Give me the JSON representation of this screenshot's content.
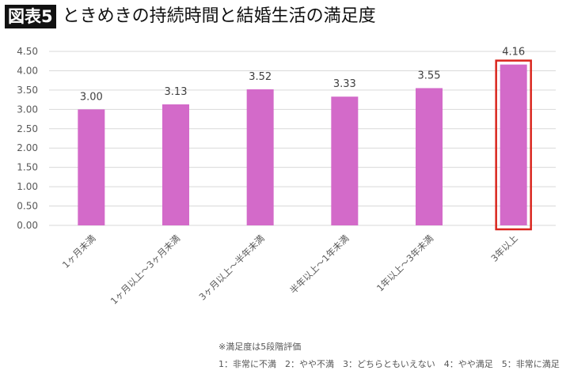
{
  "header": {
    "badge": "図表5",
    "title": "ときめきの持続時間と結婚生活の満足度"
  },
  "chart_data": {
    "type": "bar",
    "title": "ときめきの持続時間と結婚生活の満足度",
    "categories": [
      "1ヶ月未満",
      "1ヶ月以上～3ヶ月未満",
      "3ヶ月以上～半年未満",
      "半年以上～1年未満",
      "1年以上～3年未満",
      "3年以上"
    ],
    "values": [
      3.0,
      3.13,
      3.52,
      3.33,
      3.55,
      4.16
    ],
    "data_labels": [
      "3.00",
      "3.13",
      "3.52",
      "3.33",
      "3.55",
      "4.16"
    ],
    "yticks": [
      "0.00",
      "0.50",
      "1.00",
      "1.50",
      "2.00",
      "2.50",
      "3.00",
      "3.50",
      "4.00",
      "4.50"
    ],
    "ylim": [
      0,
      4.5
    ],
    "grid": true,
    "highlighted_category": "3年以上",
    "colors": {
      "bar": "#d36ac9",
      "highlight": "#d9251d",
      "grid": "#d9d9d9"
    }
  },
  "notes": {
    "line1": "※満足度は5段階評価",
    "line2": "1：非常に不満　2：やや不満　3：どちらともいえない　4：やや満足　5：非常に満足"
  }
}
